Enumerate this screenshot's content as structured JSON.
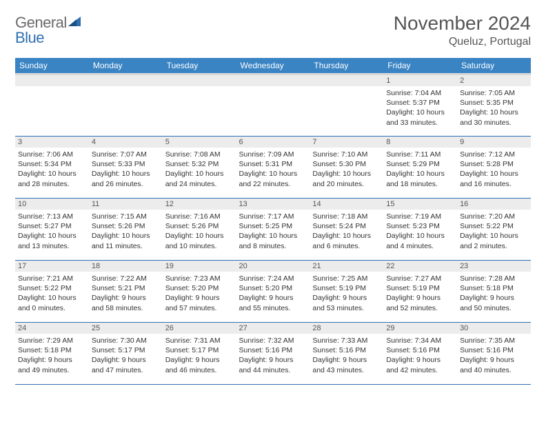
{
  "logo": {
    "general": "General",
    "blue": "Blue"
  },
  "title": "November 2024",
  "location": "Queluz, Portugal",
  "colors": {
    "header_bg": "#3a84c4",
    "rule": "#2f6fb0",
    "daynum_bg": "#ececec",
    "text": "#333333",
    "title": "#555555"
  },
  "dayNames": [
    "Sunday",
    "Monday",
    "Tuesday",
    "Wednesday",
    "Thursday",
    "Friday",
    "Saturday"
  ],
  "weeks": [
    [
      {
        "num": "",
        "sunrise": "",
        "sunset": "",
        "daylight": ""
      },
      {
        "num": "",
        "sunrise": "",
        "sunset": "",
        "daylight": ""
      },
      {
        "num": "",
        "sunrise": "",
        "sunset": "",
        "daylight": ""
      },
      {
        "num": "",
        "sunrise": "",
        "sunset": "",
        "daylight": ""
      },
      {
        "num": "",
        "sunrise": "",
        "sunset": "",
        "daylight": ""
      },
      {
        "num": "1",
        "sunrise": "Sunrise: 7:04 AM",
        "sunset": "Sunset: 5:37 PM",
        "daylight": "Daylight: 10 hours and 33 minutes."
      },
      {
        "num": "2",
        "sunrise": "Sunrise: 7:05 AM",
        "sunset": "Sunset: 5:35 PM",
        "daylight": "Daylight: 10 hours and 30 minutes."
      }
    ],
    [
      {
        "num": "3",
        "sunrise": "Sunrise: 7:06 AM",
        "sunset": "Sunset: 5:34 PM",
        "daylight": "Daylight: 10 hours and 28 minutes."
      },
      {
        "num": "4",
        "sunrise": "Sunrise: 7:07 AM",
        "sunset": "Sunset: 5:33 PM",
        "daylight": "Daylight: 10 hours and 26 minutes."
      },
      {
        "num": "5",
        "sunrise": "Sunrise: 7:08 AM",
        "sunset": "Sunset: 5:32 PM",
        "daylight": "Daylight: 10 hours and 24 minutes."
      },
      {
        "num": "6",
        "sunrise": "Sunrise: 7:09 AM",
        "sunset": "Sunset: 5:31 PM",
        "daylight": "Daylight: 10 hours and 22 minutes."
      },
      {
        "num": "7",
        "sunrise": "Sunrise: 7:10 AM",
        "sunset": "Sunset: 5:30 PM",
        "daylight": "Daylight: 10 hours and 20 minutes."
      },
      {
        "num": "8",
        "sunrise": "Sunrise: 7:11 AM",
        "sunset": "Sunset: 5:29 PM",
        "daylight": "Daylight: 10 hours and 18 minutes."
      },
      {
        "num": "9",
        "sunrise": "Sunrise: 7:12 AM",
        "sunset": "Sunset: 5:28 PM",
        "daylight": "Daylight: 10 hours and 16 minutes."
      }
    ],
    [
      {
        "num": "10",
        "sunrise": "Sunrise: 7:13 AM",
        "sunset": "Sunset: 5:27 PM",
        "daylight": "Daylight: 10 hours and 13 minutes."
      },
      {
        "num": "11",
        "sunrise": "Sunrise: 7:15 AM",
        "sunset": "Sunset: 5:26 PM",
        "daylight": "Daylight: 10 hours and 11 minutes."
      },
      {
        "num": "12",
        "sunrise": "Sunrise: 7:16 AM",
        "sunset": "Sunset: 5:26 PM",
        "daylight": "Daylight: 10 hours and 10 minutes."
      },
      {
        "num": "13",
        "sunrise": "Sunrise: 7:17 AM",
        "sunset": "Sunset: 5:25 PM",
        "daylight": "Daylight: 10 hours and 8 minutes."
      },
      {
        "num": "14",
        "sunrise": "Sunrise: 7:18 AM",
        "sunset": "Sunset: 5:24 PM",
        "daylight": "Daylight: 10 hours and 6 minutes."
      },
      {
        "num": "15",
        "sunrise": "Sunrise: 7:19 AM",
        "sunset": "Sunset: 5:23 PM",
        "daylight": "Daylight: 10 hours and 4 minutes."
      },
      {
        "num": "16",
        "sunrise": "Sunrise: 7:20 AM",
        "sunset": "Sunset: 5:22 PM",
        "daylight": "Daylight: 10 hours and 2 minutes."
      }
    ],
    [
      {
        "num": "17",
        "sunrise": "Sunrise: 7:21 AM",
        "sunset": "Sunset: 5:22 PM",
        "daylight": "Daylight: 10 hours and 0 minutes."
      },
      {
        "num": "18",
        "sunrise": "Sunrise: 7:22 AM",
        "sunset": "Sunset: 5:21 PM",
        "daylight": "Daylight: 9 hours and 58 minutes."
      },
      {
        "num": "19",
        "sunrise": "Sunrise: 7:23 AM",
        "sunset": "Sunset: 5:20 PM",
        "daylight": "Daylight: 9 hours and 57 minutes."
      },
      {
        "num": "20",
        "sunrise": "Sunrise: 7:24 AM",
        "sunset": "Sunset: 5:20 PM",
        "daylight": "Daylight: 9 hours and 55 minutes."
      },
      {
        "num": "21",
        "sunrise": "Sunrise: 7:25 AM",
        "sunset": "Sunset: 5:19 PM",
        "daylight": "Daylight: 9 hours and 53 minutes."
      },
      {
        "num": "22",
        "sunrise": "Sunrise: 7:27 AM",
        "sunset": "Sunset: 5:19 PM",
        "daylight": "Daylight: 9 hours and 52 minutes."
      },
      {
        "num": "23",
        "sunrise": "Sunrise: 7:28 AM",
        "sunset": "Sunset: 5:18 PM",
        "daylight": "Daylight: 9 hours and 50 minutes."
      }
    ],
    [
      {
        "num": "24",
        "sunrise": "Sunrise: 7:29 AM",
        "sunset": "Sunset: 5:18 PM",
        "daylight": "Daylight: 9 hours and 49 minutes."
      },
      {
        "num": "25",
        "sunrise": "Sunrise: 7:30 AM",
        "sunset": "Sunset: 5:17 PM",
        "daylight": "Daylight: 9 hours and 47 minutes."
      },
      {
        "num": "26",
        "sunrise": "Sunrise: 7:31 AM",
        "sunset": "Sunset: 5:17 PM",
        "daylight": "Daylight: 9 hours and 46 minutes."
      },
      {
        "num": "27",
        "sunrise": "Sunrise: 7:32 AM",
        "sunset": "Sunset: 5:16 PM",
        "daylight": "Daylight: 9 hours and 44 minutes."
      },
      {
        "num": "28",
        "sunrise": "Sunrise: 7:33 AM",
        "sunset": "Sunset: 5:16 PM",
        "daylight": "Daylight: 9 hours and 43 minutes."
      },
      {
        "num": "29",
        "sunrise": "Sunrise: 7:34 AM",
        "sunset": "Sunset: 5:16 PM",
        "daylight": "Daylight: 9 hours and 42 minutes."
      },
      {
        "num": "30",
        "sunrise": "Sunrise: 7:35 AM",
        "sunset": "Sunset: 5:16 PM",
        "daylight": "Daylight: 9 hours and 40 minutes."
      }
    ]
  ]
}
